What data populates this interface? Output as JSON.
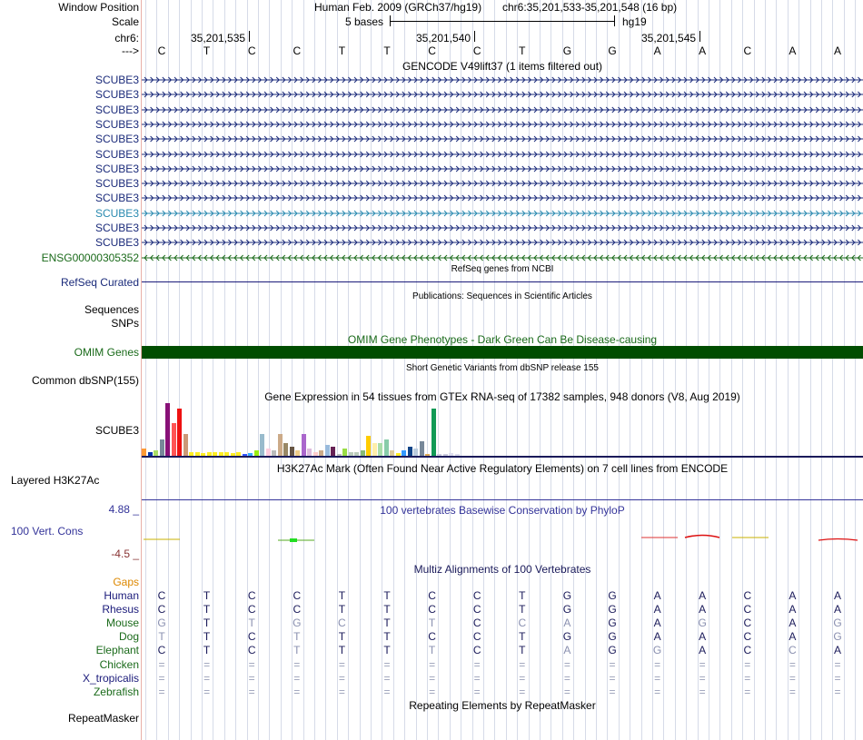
{
  "header": {
    "window_position_label": "Window Position",
    "scale_label": "Scale",
    "chrom_label": "chr6:",
    "strand_label": "--->",
    "assembly_text": "Human Feb. 2009 (GRCh37/hg19)",
    "position_text": "chr6:35,201,533-35,201,548 (16 bp)",
    "scale_text": "5 bases",
    "db_text": "hg19",
    "ruler_positions": [
      "35,201,535",
      "35,201,540",
      "35,201,545"
    ],
    "sequence": [
      "C",
      "T",
      "C",
      "C",
      "T",
      "T",
      "C",
      "C",
      "T",
      "G",
      "G",
      "A",
      "A",
      "C",
      "A",
      "A"
    ]
  },
  "gencode": {
    "title": "GENCODE V49lift37 (1 items filtered out)",
    "genes": [
      {
        "name": "SCUBE3",
        "color": "#1a2a7a",
        "strand": "+"
      },
      {
        "name": "SCUBE3",
        "color": "#1a2a7a",
        "strand": "+"
      },
      {
        "name": "SCUBE3",
        "color": "#1a2a7a",
        "strand": "+"
      },
      {
        "name": "SCUBE3",
        "color": "#1a2a7a",
        "strand": "+"
      },
      {
        "name": "SCUBE3",
        "color": "#1a2a7a",
        "strand": "+"
      },
      {
        "name": "SCUBE3",
        "color": "#1a2a7a",
        "strand": "+"
      },
      {
        "name": "SCUBE3",
        "color": "#1a2a7a",
        "strand": "+"
      },
      {
        "name": "SCUBE3",
        "color": "#1a2a7a",
        "strand": "+"
      },
      {
        "name": "SCUBE3",
        "color": "#1a2a7a",
        "strand": "+"
      },
      {
        "name": "SCUBE3",
        "color": "#2a8ab0",
        "strand": "+"
      },
      {
        "name": "SCUBE3",
        "color": "#1a2a7a",
        "strand": "+"
      },
      {
        "name": "SCUBE3",
        "color": "#1a2a7a",
        "strand": "+"
      },
      {
        "name": "ENSG00000305352",
        "color": "#1a6a1a",
        "strand": "-"
      }
    ]
  },
  "refseq": {
    "title": "RefSeq genes from NCBI",
    "label": "RefSeq Curated"
  },
  "publications": {
    "title": "Publications: Sequences in Scientific Articles",
    "label1": "Sequences",
    "label2": "SNPs"
  },
  "omim": {
    "title": "OMIM Gene Phenotypes - Dark Green Can Be Disease-causing",
    "label": "OMIM Genes",
    "color": "#004d00"
  },
  "dbsnp": {
    "title": "Short Genetic Variants from dbSNP release 155",
    "label": "Common dbSNP(155)"
  },
  "gtex": {
    "title": "Gene Expression in 54 tissues from GTEx RNA-seq of 17382 samples, 948 donors (V8, Aug 2019)",
    "label": "SCUBE3",
    "values": [
      8,
      4,
      6,
      18,
      58,
      36,
      52,
      24,
      4,
      4,
      3,
      4,
      4,
      4,
      4,
      3,
      4,
      2,
      3,
      6,
      24,
      8,
      6,
      24,
      14,
      10,
      6,
      24,
      8,
      4,
      6,
      12,
      10,
      2,
      8,
      4,
      4,
      6,
      22,
      14,
      14,
      18,
      6,
      3,
      6,
      10,
      8,
      16,
      2,
      52,
      2,
      2,
      3,
      2
    ],
    "colors": [
      "#ff9933",
      "#0033aa",
      "#aadd66",
      "#778899",
      "#881177",
      "#ff5555",
      "#ee1111",
      "#cc9977",
      "#ffee22",
      "#ffee22",
      "#ffee22",
      "#ffee22",
      "#ffee22",
      "#ffee22",
      "#ffee22",
      "#ffee22",
      "#ffee22",
      "#3355ff",
      "#33aaff",
      "#99ee11",
      "#99bbcc",
      "#ffccdd",
      "#bbbbbb",
      "#ccaa88",
      "#998866",
      "#665544",
      "#eecc88",
      "#aa66cc",
      "#ddbbdd",
      "#ffcccc",
      "#ccaa88",
      "#99bbdd",
      "#662255",
      "#bbbbbb",
      "#99dd44",
      "#bbccbb",
      "#bbccbb",
      "#88bb77",
      "#ffcc00",
      "#ffeeaa",
      "#aaddaa",
      "#88ccaa",
      "#ddcc99",
      "#ffee22",
      "#3399ff",
      "#114488",
      "#bbccdd",
      "#778899",
      "#ddaa55",
      "#119955",
      "#ccccdd",
      "#ccccdd",
      "#ddddee",
      "#ddddee"
    ]
  },
  "h3k27ac": {
    "title": "H3K27Ac Mark (Often Found Near Active Regulatory Elements) on 7 cell lines from ENCODE",
    "label": "Layered H3K27Ac"
  },
  "phylop": {
    "title": "100 vertebrates Basewise Conservation by PhyloP",
    "label": "100 Vert. Cons",
    "max": "4.88 _",
    "min": "-4.5 _"
  },
  "multiz": {
    "title": "Multiz Alignments of 100 Vertebrates",
    "gaps_label": "Gaps",
    "species": [
      {
        "name": "Human",
        "color": "#1a1a7a",
        "bases": [
          "C",
          "T",
          "C",
          "C",
          "T",
          "T",
          "C",
          "C",
          "T",
          "G",
          "G",
          "A",
          "A",
          "C",
          "A",
          "A"
        ]
      },
      {
        "name": "Rhesus",
        "color": "#1a1a7a",
        "bases": [
          "C",
          "T",
          "C",
          "C",
          "T",
          "T",
          "C",
          "C",
          "T",
          "G",
          "G",
          "A",
          "A",
          "C",
          "A",
          "A"
        ]
      },
      {
        "name": "Mouse",
        "color": "#1a6a1a",
        "bases": [
          "G",
          "T",
          "T",
          "G",
          "C",
          "T",
          "T",
          "C",
          "C",
          "A",
          "G",
          "A",
          "G",
          "C",
          "A",
          "G"
        ]
      },
      {
        "name": "Dog",
        "color": "#1a6a1a",
        "bases": [
          "T",
          "T",
          "C",
          "T",
          "T",
          "T",
          "C",
          "C",
          "T",
          "G",
          "G",
          "A",
          "A",
          "C",
          "A",
          "G"
        ]
      },
      {
        "name": "Elephant",
        "color": "#1a6a1a",
        "bases": [
          "C",
          "T",
          "C",
          "T",
          "T",
          "T",
          "T",
          "C",
          "T",
          "A",
          "G",
          "G",
          "A",
          "C",
          "C",
          "A"
        ]
      },
      {
        "name": "Chicken",
        "color": "#1a6a1a",
        "bases": [
          "=",
          "=",
          "=",
          "=",
          "=",
          "=",
          "=",
          "=",
          "=",
          "=",
          "=",
          "=",
          "=",
          "=",
          "=",
          "="
        ]
      },
      {
        "name": "X_tropicalis",
        "color": "#1a1a7a",
        "bases": [
          "=",
          "=",
          "=",
          "=",
          "=",
          "=",
          "=",
          "=",
          "=",
          "=",
          "=",
          "=",
          "=",
          "=",
          "=",
          "="
        ]
      },
      {
        "name": "Zebrafish",
        "color": "#1a6a1a",
        "bases": [
          "=",
          "=",
          "=",
          "=",
          "=",
          "=",
          "=",
          "=",
          "=",
          "=",
          "=",
          "=",
          "=",
          "=",
          "=",
          "="
        ]
      }
    ],
    "dim": [
      [
        0,
        0,
        0,
        0,
        0,
        0,
        0,
        0,
        0,
        0,
        0,
        0,
        0,
        0,
        0,
        0
      ],
      [
        0,
        0,
        0,
        0,
        0,
        0,
        0,
        0,
        0,
        0,
        0,
        0,
        0,
        0,
        0,
        0
      ],
      [
        1,
        0,
        1,
        1,
        1,
        0,
        1,
        0,
        1,
        1,
        0,
        0,
        1,
        0,
        0,
        1
      ],
      [
        1,
        0,
        0,
        1,
        0,
        0,
        0,
        0,
        0,
        0,
        0,
        0,
        0,
        0,
        0,
        1
      ],
      [
        0,
        0,
        0,
        1,
        0,
        0,
        1,
        0,
        0,
        1,
        0,
        1,
        0,
        0,
        1,
        0
      ]
    ]
  },
  "repeatmasker": {
    "title": "Repeating Elements by RepeatMasker",
    "label": "RepeatMasker"
  }
}
